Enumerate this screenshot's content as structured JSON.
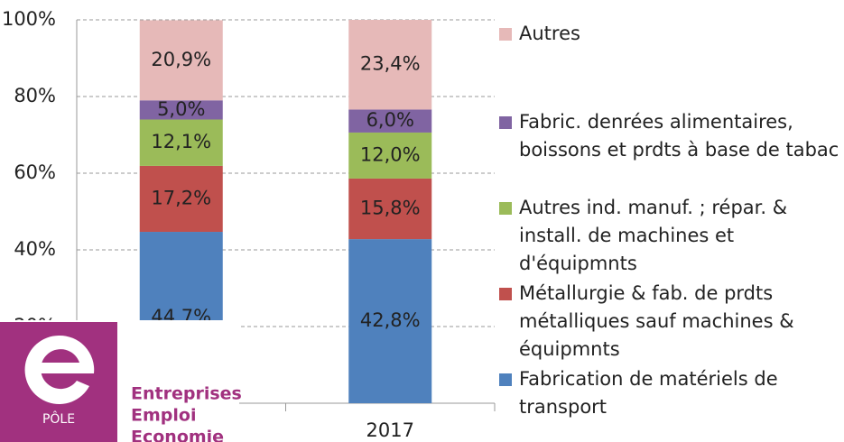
{
  "chart_data": {
    "type": "stacked_bar",
    "categories": [
      null,
      "2017"
    ],
    "series": [
      {
        "name": "Fabrication de matériels de transport",
        "color": "#4f81bd",
        "values": [
          44.7,
          42.8
        ],
        "value_labels": [
          "44,7%",
          "42,8%"
        ]
      },
      {
        "name": "Métallurgie & fab. de prdts métalliques sauf machines & équipmnts",
        "color": "#c0504d",
        "values": [
          17.2,
          15.8
        ],
        "value_labels": [
          "17,2%",
          "15,8%"
        ]
      },
      {
        "name": "Autres ind. manuf. ; répar. & install. de machines et d'équipmnts",
        "color": "#9bbb59",
        "values": [
          12.1,
          12.0
        ],
        "value_labels": [
          "12,1%",
          "12,0%"
        ]
      },
      {
        "name": "Fabric. denrées alimentaires, boissons et prdts à base de tabac",
        "color": "#8064a2",
        "values": [
          5.0,
          6.0
        ],
        "value_labels": [
          "5,0%",
          "6,0%"
        ]
      },
      {
        "name": "Autres",
        "color": "#e6b9b8",
        "values": [
          20.9,
          23.4
        ],
        "value_labels": [
          "20,9%",
          "23,4%"
        ]
      }
    ],
    "ylim": [
      0,
      100
    ],
    "yticks": [
      {
        "value": 20,
        "label": "20%"
      },
      {
        "value": 40,
        "label": "40%"
      },
      {
        "value": 60,
        "label": "60%"
      },
      {
        "value": 80,
        "label": "80%"
      },
      {
        "value": 100,
        "label": "100%"
      }
    ],
    "grid": true,
    "legend": "right"
  },
  "logo": {
    "badge": "PÔLE",
    "lines": [
      "Entreprises",
      "Emploi",
      "Economie"
    ]
  }
}
